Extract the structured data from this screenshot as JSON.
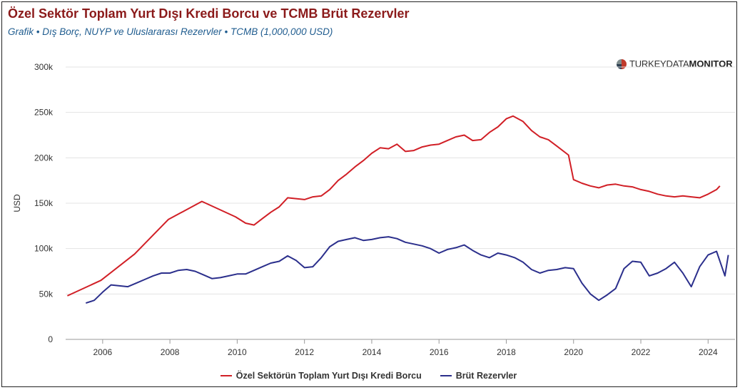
{
  "title": "Özel Sektör Toplam Yurt Dışı Kredi Borcu ve TCMB Brüt Rezervler",
  "subtitle": "Grafik • Dış Borç, NUYP ve Uluslararası Rezervler • TCMB (1,000,000 USD)",
  "brand": {
    "light": "TURKEYDATA",
    "bold": "MONITOR"
  },
  "chart_data": {
    "type": "line",
    "ylabel": "USD",
    "ylim": [
      0,
      300000
    ],
    "yticks": [
      0,
      50000,
      100000,
      150000,
      200000,
      250000,
      300000
    ],
    "ytick_labels": [
      "0",
      "50k",
      "100k",
      "150k",
      "200k",
      "250k",
      "300k"
    ],
    "xlim": [
      2004.9,
      2024.8
    ],
    "xticks": [
      2006,
      2008,
      2010,
      2012,
      2014,
      2016,
      2018,
      2020,
      2022,
      2024
    ],
    "xtick_labels": [
      "2006",
      "2008",
      "2010",
      "2012",
      "2014",
      "2016",
      "2018",
      "2020",
      "2022",
      "2024"
    ],
    "grid": true,
    "legend_position": "bottom",
    "series": [
      {
        "name": "Özel Sektörün Toplam Yurt Dışı Kredi Borcu",
        "color": "#d11f26",
        "x": [
          2004.95,
          2005.95,
          2006.95,
          2007.95,
          2008.95,
          2009.95,
          2010.25,
          2010.5,
          2010.75,
          2011.0,
          2011.25,
          2011.5,
          2011.75,
          2012.0,
          2012.25,
          2012.5,
          2012.75,
          2013.0,
          2013.25,
          2013.5,
          2013.75,
          2014.0,
          2014.25,
          2014.5,
          2014.75,
          2015.0,
          2015.25,
          2015.5,
          2015.75,
          2016.0,
          2016.25,
          2016.5,
          2016.75,
          2017.0,
          2017.25,
          2017.5,
          2017.75,
          2018.0,
          2018.2,
          2018.5,
          2018.75,
          2019.0,
          2019.25,
          2019.5,
          2019.85,
          2020.0,
          2020.25,
          2020.5,
          2020.75,
          2021.0,
          2021.25,
          2021.5,
          2021.75,
          2022.0,
          2022.25,
          2022.5,
          2022.75,
          2023.0,
          2023.25,
          2023.5,
          2023.75,
          2024.0,
          2024.25,
          2024.35
        ],
        "values": [
          48000,
          65000,
          94000,
          132000,
          152000,
          135000,
          128000,
          126000,
          133000,
          140000,
          146000,
          156000,
          155000,
          154000,
          157000,
          158000,
          165000,
          175000,
          182000,
          190000,
          197000,
          205000,
          211000,
          210000,
          215000,
          207000,
          208000,
          212000,
          214000,
          215000,
          219000,
          223000,
          225000,
          219000,
          220000,
          228000,
          234000,
          243000,
          246000,
          240000,
          230000,
          223000,
          220000,
          213000,
          203000,
          176000,
          172000,
          169000,
          167000,
          170000,
          171000,
          169000,
          168000,
          165000,
          163000,
          160000,
          158000,
          157000,
          158000,
          157000,
          156000,
          160000,
          165000,
          169000
        ]
      },
      {
        "name": "Brüt Rezervler",
        "color": "#2b2f8c",
        "x": [
          2005.5,
          2005.75,
          2006.0,
          2006.25,
          2006.5,
          2006.75,
          2007.0,
          2007.25,
          2007.5,
          2007.75,
          2008.0,
          2008.25,
          2008.5,
          2008.75,
          2009.0,
          2009.25,
          2009.5,
          2009.75,
          2010.0,
          2010.25,
          2010.5,
          2010.75,
          2011.0,
          2011.25,
          2011.5,
          2011.75,
          2012.0,
          2012.25,
          2012.5,
          2012.75,
          2013.0,
          2013.25,
          2013.5,
          2013.75,
          2014.0,
          2014.25,
          2014.5,
          2014.75,
          2015.0,
          2015.25,
          2015.5,
          2015.75,
          2016.0,
          2016.25,
          2016.5,
          2016.75,
          2017.0,
          2017.25,
          2017.5,
          2017.75,
          2018.0,
          2018.25,
          2018.5,
          2018.75,
          2019.0,
          2019.25,
          2019.5,
          2019.75,
          2020.0,
          2020.25,
          2020.5,
          2020.75,
          2021.0,
          2021.25,
          2021.5,
          2021.75,
          2022.0,
          2022.25,
          2022.5,
          2022.75,
          2023.0,
          2023.25,
          2023.5,
          2023.75,
          2024.0,
          2024.25,
          2024.5,
          2024.6
        ],
        "values": [
          40000,
          43000,
          52000,
          60000,
          59000,
          58000,
          62000,
          66000,
          70000,
          73000,
          73000,
          76000,
          77000,
          75000,
          71000,
          67000,
          68000,
          70000,
          72000,
          72000,
          76000,
          80000,
          84000,
          86000,
          92000,
          87000,
          79000,
          80000,
          90000,
          102000,
          108000,
          110000,
          112000,
          109000,
          110000,
          112000,
          113000,
          111000,
          107000,
          105000,
          103000,
          100000,
          95000,
          99000,
          101000,
          104000,
          98000,
          93000,
          90000,
          95000,
          93000,
          90000,
          85000,
          77000,
          73000,
          76000,
          77000,
          79000,
          78000,
          62000,
          50000,
          43000,
          49000,
          56000,
          78000,
          86000,
          85000,
          70000,
          73000,
          78000,
          85000,
          73000,
          58000,
          80000,
          93000,
          97000,
          70000,
          93000
        ]
      }
    ]
  }
}
